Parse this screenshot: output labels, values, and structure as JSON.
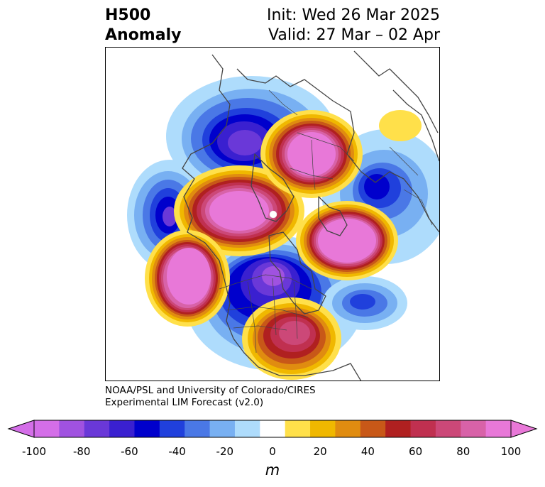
{
  "header": {
    "title_line1": "H500",
    "title_line2": "Anomaly",
    "init_line": "Init: Wed 26 Mar 2025",
    "valid_line": "Valid: 27 Mar – 02 Apr"
  },
  "credit": {
    "line1": "NOAA/PSL and University of Colorado/CIRES",
    "line2": "Experimental LIM Forecast (v2.0)"
  },
  "colorbar": {
    "unit": "m",
    "tick_labels": [
      "-100",
      "-80",
      "-60",
      "-40",
      "-20",
      "0",
      "20",
      "40",
      "60",
      "80",
      "100"
    ],
    "levels": [
      -100,
      -90,
      -80,
      -70,
      -60,
      -50,
      -40,
      -30,
      -20,
      -10,
      10,
      20,
      30,
      40,
      50,
      60,
      70,
      80,
      90,
      100
    ],
    "colors": [
      "#d46ee8",
      "#a052e0",
      "#6a38d8",
      "#3a20d0",
      "#0000cc",
      "#2040dc",
      "#4a78e6",
      "#78b0f2",
      "#aedcfc",
      "#ffffff",
      "#ffe04a",
      "#f0b800",
      "#e08c10",
      "#c85818",
      "#b02020",
      "#c03050",
      "#cc4878",
      "#d862a8",
      "#e878d8"
    ],
    "extend_low_color": "#d46ee8",
    "extend_high_color": "#e878d8"
  },
  "map": {
    "projection": "north-polar-stereographic",
    "field": "500 hPa geopotential height anomaly"
  }
}
